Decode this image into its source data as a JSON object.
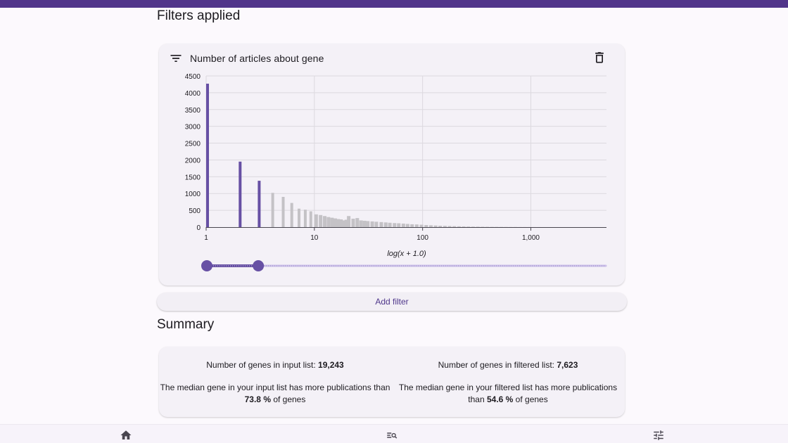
{
  "page": {
    "filters_title": "Filters applied",
    "summary_title": "Summary"
  },
  "colors": {
    "accent": "#51358a",
    "bar_selected": "#6750a4",
    "bar_unselected": "#c4c2c6",
    "slider_inactive": "#cbbfe8"
  },
  "filter": {
    "title": "Number of articles about gene",
    "filter_icon": "filter-list-icon",
    "delete_icon": "trash-icon",
    "slider": {
      "low": 1,
      "high": 3
    }
  },
  "add_filter_label": "Add filter",
  "summary": {
    "input_count_label": "Number of genes in input list: ",
    "input_count_value": "19,243",
    "filtered_count_label": "Number of genes in filtered list: ",
    "filtered_count_value": "7,623",
    "input_median_pre": "The median gene in your input list has more publications than ",
    "input_median_value": "73.8 %",
    "input_median_post": " of genes",
    "filtered_median_pre": "The median gene in your filtered list has more publications than ",
    "filtered_median_value": "54.6 %",
    "filtered_median_post": " of genes"
  },
  "nav": [
    {
      "name": "home",
      "icon": "home-icon"
    },
    {
      "name": "search",
      "icon": "search-list-icon"
    },
    {
      "name": "tune",
      "icon": "tune-icon"
    }
  ],
  "chart_data": {
    "type": "bar",
    "xlabel": "log(x + 1.0)",
    "x_scale": "log",
    "xlim": [
      1,
      5000
    ],
    "ylim": [
      0,
      4500
    ],
    "x_ticks": [
      1,
      10,
      100,
      1000
    ],
    "x_tick_labels": [
      "1",
      "10",
      "100",
      "1,000"
    ],
    "y_ticks": [
      0,
      500,
      1000,
      1500,
      2000,
      2500,
      3000,
      3500,
      4000,
      4500
    ],
    "y_tick_labels": [
      "0",
      "500",
      "1000",
      "1500",
      "2000",
      "2500",
      "3000",
      "3500",
      "4000",
      "4500"
    ],
    "grid": true,
    "selected_range": [
      1,
      3
    ],
    "bins": [
      {
        "x": 1,
        "y": 4270
      },
      {
        "x": 2,
        "y": 1950
      },
      {
        "x": 3,
        "y": 1380
      },
      {
        "x": 4,
        "y": 1020
      },
      {
        "x": 5,
        "y": 900
      },
      {
        "x": 6,
        "y": 720
      },
      {
        "x": 7,
        "y": 550
      },
      {
        "x": 8,
        "y": 520
      },
      {
        "x": 9,
        "y": 470
      },
      {
        "x": 10,
        "y": 380
      },
      {
        "x": 11,
        "y": 360
      },
      {
        "x": 12,
        "y": 330
      },
      {
        "x": 13,
        "y": 300
      },
      {
        "x": 14,
        "y": 280
      },
      {
        "x": 15,
        "y": 260
      },
      {
        "x": 16,
        "y": 240
      },
      {
        "x": 17,
        "y": 230
      },
      {
        "x": 18,
        "y": 200
      },
      {
        "x": 19,
        "y": 220
      },
      {
        "x": 20,
        "y": 330
      },
      {
        "x": 22,
        "y": 250
      },
      {
        "x": 24,
        "y": 270
      },
      {
        "x": 26,
        "y": 200
      },
      {
        "x": 28,
        "y": 190
      },
      {
        "x": 30,
        "y": 180
      },
      {
        "x": 33,
        "y": 170
      },
      {
        "x": 36,
        "y": 160
      },
      {
        "x": 40,
        "y": 150
      },
      {
        "x": 44,
        "y": 140
      },
      {
        "x": 48,
        "y": 130
      },
      {
        "x": 53,
        "y": 120
      },
      {
        "x": 58,
        "y": 115
      },
      {
        "x": 64,
        "y": 105
      },
      {
        "x": 70,
        "y": 95
      },
      {
        "x": 77,
        "y": 85
      },
      {
        "x": 85,
        "y": 80
      },
      {
        "x": 94,
        "y": 72
      },
      {
        "x": 104,
        "y": 62
      },
      {
        "x": 115,
        "y": 55
      },
      {
        "x": 127,
        "y": 48
      },
      {
        "x": 140,
        "y": 42
      },
      {
        "x": 155,
        "y": 38
      },
      {
        "x": 171,
        "y": 33
      },
      {
        "x": 189,
        "y": 28
      },
      {
        "x": 209,
        "y": 24
      },
      {
        "x": 231,
        "y": 20
      },
      {
        "x": 255,
        "y": 17
      },
      {
        "x": 282,
        "y": 14
      },
      {
        "x": 312,
        "y": 12
      },
      {
        "x": 345,
        "y": 10
      },
      {
        "x": 381,
        "y": 8
      },
      {
        "x": 421,
        "y": 7
      },
      {
        "x": 465,
        "y": 6
      },
      {
        "x": 514,
        "y": 5
      },
      {
        "x": 568,
        "y": 4
      },
      {
        "x": 628,
        "y": 3
      },
      {
        "x": 694,
        "y": 3
      },
      {
        "x": 767,
        "y": 2
      },
      {
        "x": 848,
        "y": 2
      },
      {
        "x": 937,
        "y": 2
      },
      {
        "x": 1035,
        "y": 1
      },
      {
        "x": 1144,
        "y": 1
      }
    ]
  }
}
